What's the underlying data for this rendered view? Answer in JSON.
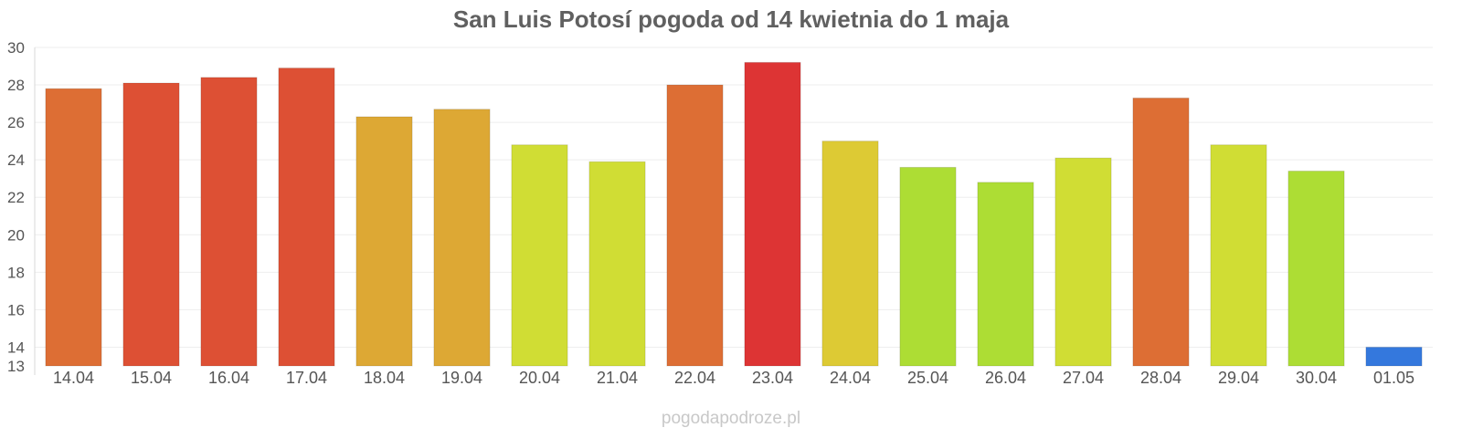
{
  "title": "San Luis Potosí pogoda od 14 kwietnia do 1 maja",
  "source": "pogodapodroze.pl",
  "chart_data": {
    "type": "bar",
    "title": "San Luis Potosí pogoda od 14 kwietnia do 1 maja",
    "xlabel": "",
    "ylabel": "",
    "ylim": [
      13,
      30
    ],
    "yticks": [
      13,
      14,
      16,
      18,
      20,
      22,
      24,
      26,
      28,
      30
    ],
    "grid": true,
    "categories": [
      "14.04",
      "15.04",
      "16.04",
      "17.04",
      "18.04",
      "19.04",
      "20.04",
      "21.04",
      "22.04",
      "23.04",
      "24.04",
      "25.04",
      "26.04",
      "27.04",
      "28.04",
      "29.04",
      "30.04",
      "01.05"
    ],
    "values": [
      27.8,
      28.1,
      28.4,
      28.9,
      26.3,
      26.7,
      24.8,
      23.9,
      28.0,
      29.2,
      25.0,
      23.6,
      22.8,
      24.1,
      27.3,
      24.8,
      23.4,
      14.0
    ],
    "colors": [
      "#dd6e34",
      "#dd5034",
      "#dd5034",
      "#dd5034",
      "#dda834",
      "#dda834",
      "#d0dd34",
      "#d0dd34",
      "#dd6e34",
      "#dd3434",
      "#ddca34",
      "#addd34",
      "#addd34",
      "#d0dd34",
      "#dd6e34",
      "#d0dd34",
      "#addd34",
      "#3478dd"
    ]
  }
}
